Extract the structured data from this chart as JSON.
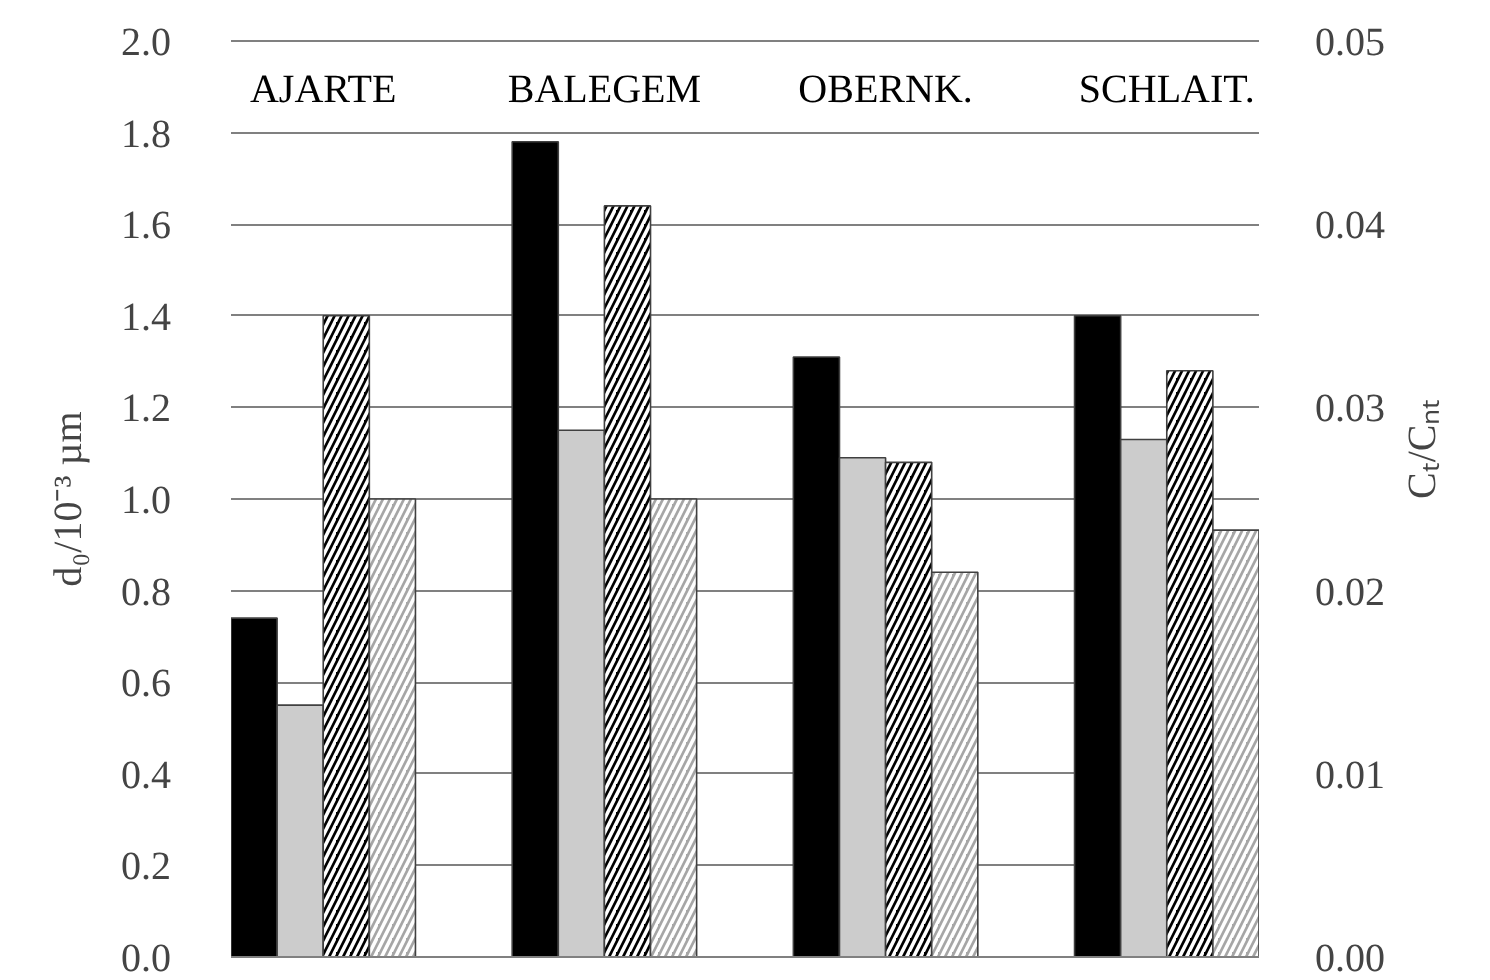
{
  "chart_data": {
    "type": "bar",
    "ylabel": "d₀/10⁻³ µm",
    "y2label": "Cₜ/Cₙₜ",
    "categories": [
      "AJARTE",
      "BALEGEM",
      "OBERNK.",
      "SCHLAIT."
    ],
    "series": [
      {
        "color": "#000000",
        "values": [
          0.74,
          1.78,
          1.31,
          1.4
        ]
      },
      {
        "color": "#cccccc",
        "values": [
          0.55,
          1.15,
          1.09,
          1.13
        ]
      },
      {
        "color": "#000000",
        "axis": "y2",
        "values": [
          0.035,
          0.041,
          0.027,
          0.032
        ]
      },
      {
        "color": "#a6a6a6",
        "axis": "y2",
        "values": [
          0.025,
          0.025,
          0.021,
          0.0233
        ]
      }
    ],
    "ylim": [
      0,
      2.0
    ],
    "yticks": [
      {
        "value": 0,
        "label": "0.0"
      },
      0.2,
      0.4,
      0.6,
      0.8,
      {
        "value": 1,
        "label": "1.0"
      },
      1.2,
      1.4,
      1.6,
      1.8,
      {
        "value": 2,
        "label": "2.0"
      }
    ],
    "y2lim": [
      0,
      0.05
    ],
    "y2ticks": [
      {
        "value": 0,
        "label": "0.00"
      },
      0.01,
      0.02,
      0.03,
      0.04,
      0.05
    ],
    "grid": "y"
  }
}
